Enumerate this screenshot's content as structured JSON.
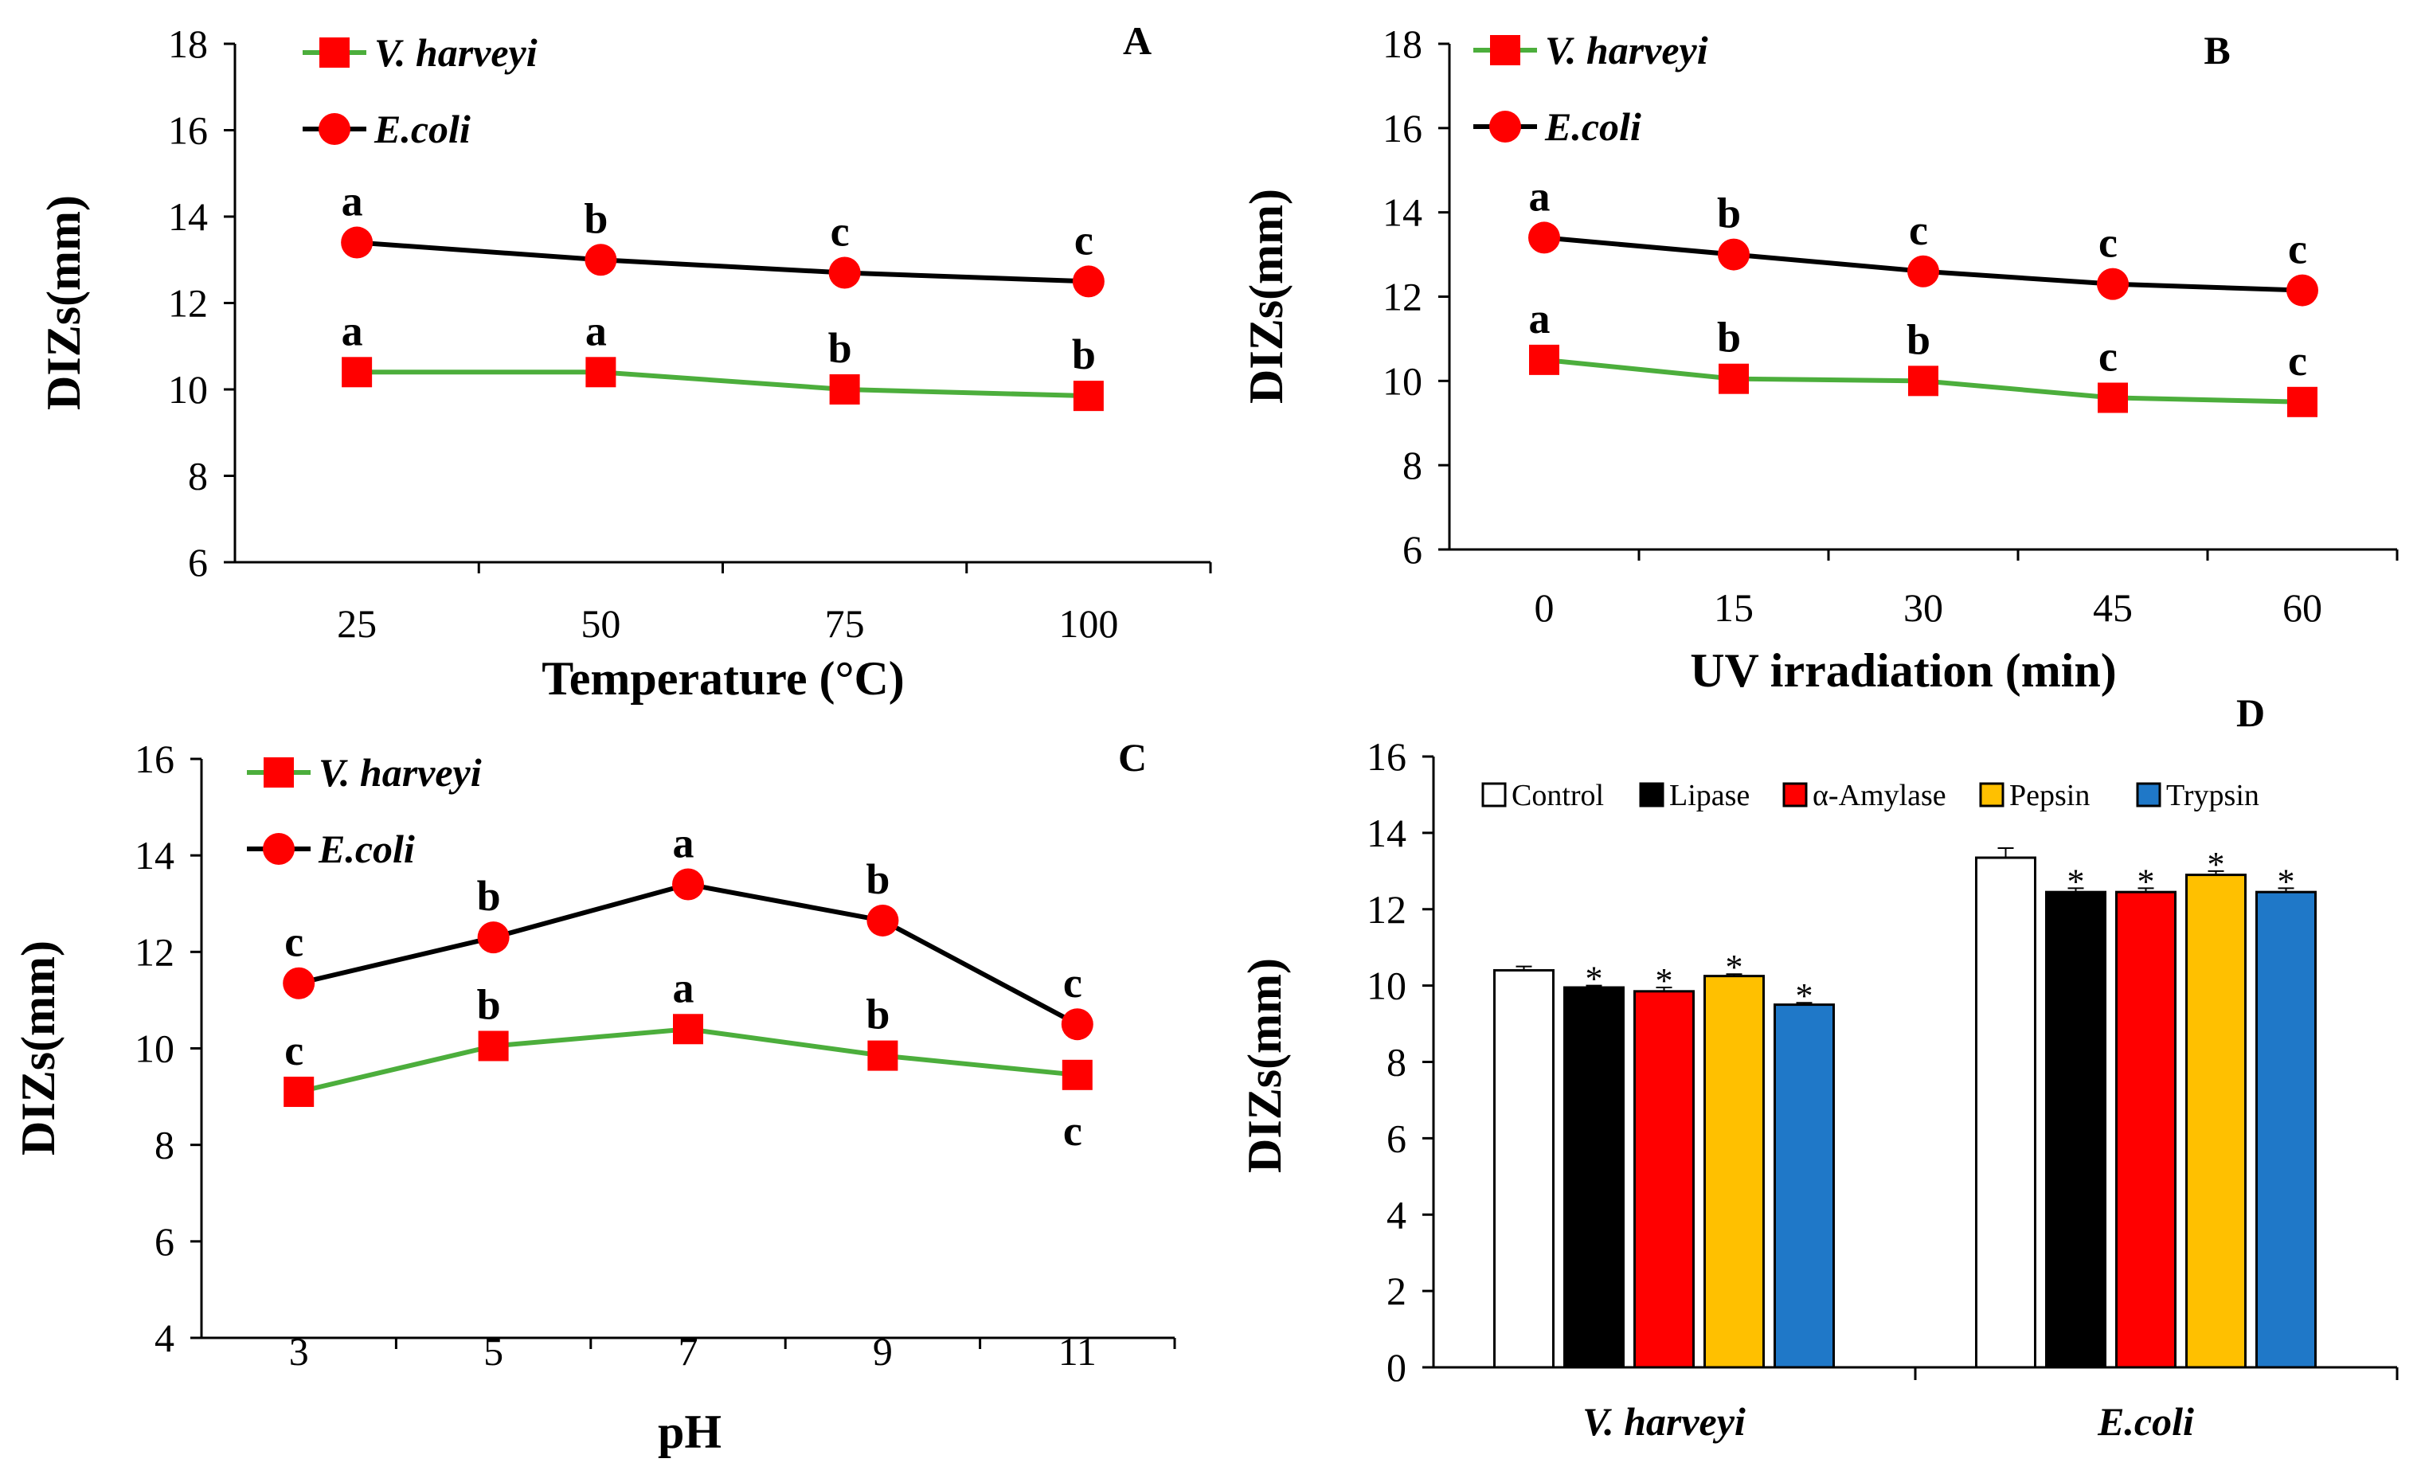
{
  "chart_data": [
    {
      "panel": "A",
      "type": "line",
      "xlabel": "Temperature (°C)",
      "ylabel": "DIZs(mm)",
      "categories": [
        "25",
        "50",
        "75",
        "100"
      ],
      "ylim": [
        6,
        18
      ],
      "yticks": [
        6,
        8,
        10,
        12,
        14,
        16,
        18
      ],
      "series": [
        {
          "name": "V. harveyi",
          "color": "#4cae3c",
          "marker": "square",
          "values": [
            10.4,
            10.4,
            10.0,
            9.85
          ],
          "labels": [
            "a",
            "a",
            "b",
            "b"
          ]
        },
        {
          "name": "E.coli",
          "color": "#000000",
          "marker": "circle",
          "values": [
            13.4,
            13.0,
            12.7,
            12.5
          ],
          "labels": [
            "a",
            "b",
            "c",
            "c"
          ]
        }
      ]
    },
    {
      "panel": "B",
      "type": "line",
      "xlabel": "UV irradiation (min)",
      "ylabel": "DIZs(mm)",
      "categories": [
        "0",
        "15",
        "30",
        "45",
        "60"
      ],
      "ylim": [
        6,
        18
      ],
      "yticks": [
        6,
        8,
        10,
        12,
        14,
        16,
        18
      ],
      "series": [
        {
          "name": "V. harveyi",
          "color": "#4cae3c",
          "marker": "square",
          "values": [
            10.5,
            10.05,
            10.0,
            9.6,
            9.5
          ],
          "labels": [
            "a",
            "b",
            "b",
            "c",
            "c"
          ]
        },
        {
          "name": "E.coli",
          "color": "#000000",
          "marker": "circle",
          "values": [
            13.4,
            13.0,
            12.6,
            12.3,
            12.15
          ],
          "labels": [
            "a",
            "b",
            "c",
            "c",
            "c"
          ]
        }
      ]
    },
    {
      "panel": "C",
      "type": "line",
      "xlabel": "pH",
      "ylabel": "DIZs(mm)",
      "categories": [
        "3",
        "5",
        "7",
        "9",
        "11"
      ],
      "ylim": [
        4,
        16
      ],
      "yticks": [
        4,
        6,
        8,
        10,
        12,
        14,
        16
      ],
      "series": [
        {
          "name": "V. harveyi",
          "color": "#4cae3c",
          "marker": "square",
          "values": [
            9.1,
            10.05,
            10.4,
            9.85,
            9.45
          ],
          "labels": [
            "c",
            "b",
            "a",
            "b",
            "c"
          ],
          "label_below": [
            false,
            false,
            false,
            false,
            true
          ]
        },
        {
          "name": "E.coli",
          "color": "#000000",
          "marker": "circle",
          "values": [
            11.35,
            12.3,
            13.4,
            12.65,
            10.5
          ],
          "labels": [
            "c",
            "b",
            "a",
            "b",
            "c"
          ],
          "label_below": [
            false,
            false,
            false,
            false,
            false
          ]
        }
      ]
    },
    {
      "panel": "D",
      "type": "bar",
      "ylabel": "DIZs(mm)",
      "categories": [
        "V. harveyi",
        "E.coli"
      ],
      "ylim": [
        0,
        16
      ],
      "yticks": [
        0,
        2,
        4,
        6,
        8,
        10,
        12,
        14,
        16
      ],
      "series": [
        {
          "name": "Control",
          "color": "#ffffff",
          "values": [
            10.4,
            13.35
          ],
          "errors": [
            0.1,
            0.25
          ],
          "stars": [
            "",
            ""
          ]
        },
        {
          "name": "Lipase",
          "color": "#000000",
          "values": [
            9.95,
            12.45
          ],
          "errors": [
            0.05,
            0.1
          ],
          "stars": [
            "*",
            "*"
          ]
        },
        {
          "name": "α-Amylase",
          "color": "#ff0000",
          "values": [
            9.85,
            12.45
          ],
          "errors": [
            0.1,
            0.1
          ],
          "stars": [
            "*",
            "*"
          ]
        },
        {
          "name": "Pepsin",
          "color": "#ffc000",
          "values": [
            10.25,
            12.9
          ],
          "errors": [
            0.05,
            0.1
          ],
          "stars": [
            "*",
            "*"
          ]
        },
        {
          "name": "Trypsin",
          "color": "#1f78c8",
          "values": [
            9.5,
            12.45
          ],
          "errors": [
            0.05,
            0.1
          ],
          "stars": [
            "*",
            "*"
          ]
        }
      ]
    }
  ]
}
